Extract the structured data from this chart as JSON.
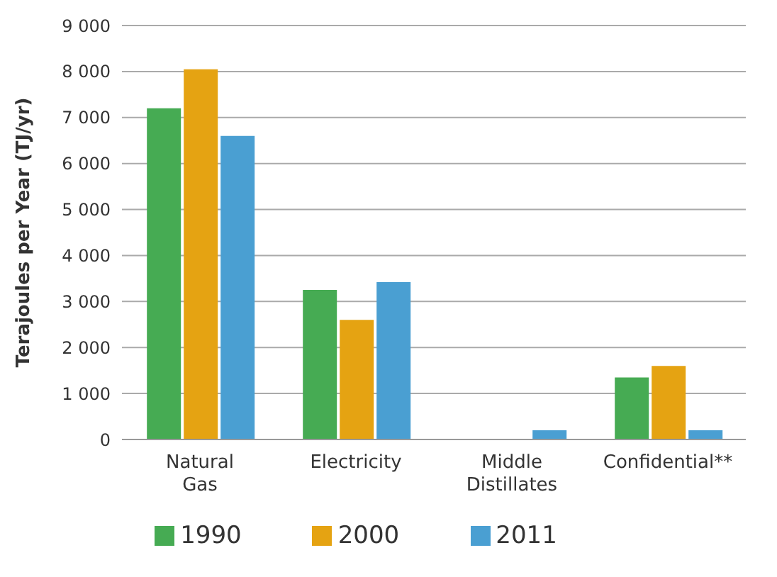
{
  "chart_data": {
    "type": "bar",
    "ylabel": "Terajoules per Year (TJ/yr)",
    "categories": [
      "Natural Gas",
      "Electricity",
      "Middle Distillates",
      "Confidential**"
    ],
    "series": [
      {
        "name": "1990",
        "color": "#46ab53",
        "values": [
          7200,
          3250,
          null,
          1350
        ]
      },
      {
        "name": "2000",
        "color": "#e5a312",
        "values": [
          8050,
          2600,
          null,
          1600
        ]
      },
      {
        "name": "2011",
        "color": "#4a9fd2",
        "values": [
          6600,
          3420,
          200,
          200
        ]
      }
    ],
    "ylim": [
      0,
      9000
    ],
    "yticks": [
      0,
      {
        "value": 1000,
        "label": "1 000"
      },
      {
        "value": 2000,
        "label": "2 000"
      },
      {
        "value": 3000,
        "label": "3 000"
      },
      {
        "value": 4000,
        "label": "4 000"
      },
      {
        "value": 5000,
        "label": "5 000"
      },
      {
        "value": 6000,
        "label": "6 000"
      },
      {
        "value": 7000,
        "label": "7 000"
      },
      {
        "value": 8000,
        "label": "8 000"
      },
      {
        "value": 9000,
        "label": "9 000"
      }
    ],
    "grid": "y",
    "legend": "bottom"
  }
}
